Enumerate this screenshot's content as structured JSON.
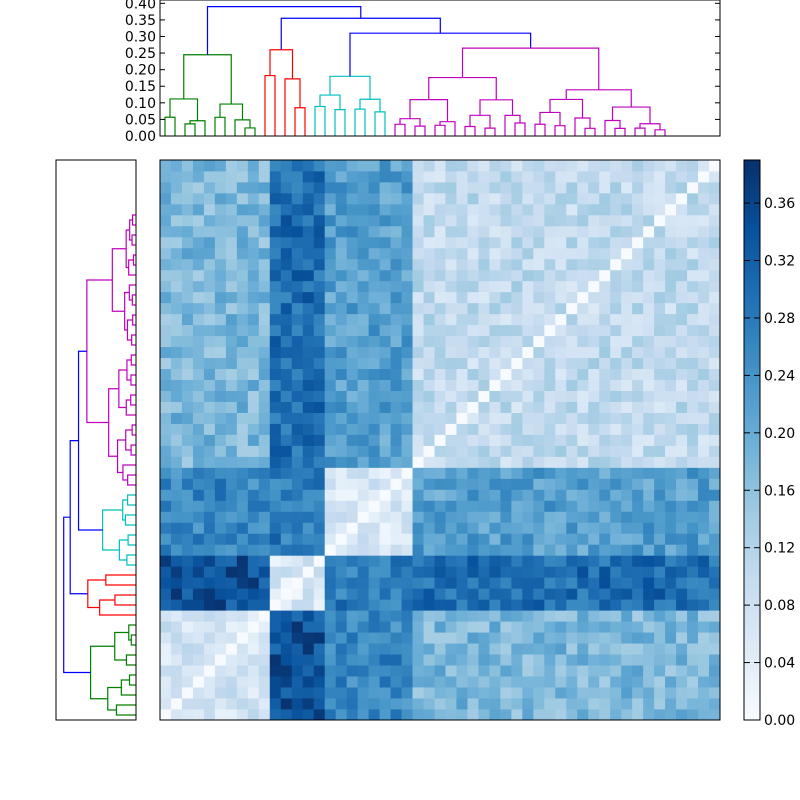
{
  "chart_data": [
    {
      "type": "dendrogram",
      "orientation": "top",
      "leaves": 51,
      "ylim": [
        0,
        0.41
      ],
      "yticks": [
        "0.00",
        "0.05",
        "0.10",
        "0.15",
        "0.20",
        "0.25",
        "0.30",
        "0.35",
        "0.40"
      ],
      "ytick_values": [
        0,
        0.05,
        0.1,
        0.15,
        0.2,
        0.25,
        0.3,
        0.35,
        0.4
      ],
      "cluster_colors": {
        "green": "#008000",
        "red": "#ff0000",
        "cyan": "#00bfbf",
        "magenta": "#bf00bf",
        "root": "#0000ff"
      },
      "link_heights": {
        "root": 0.39,
        "second": 0.355,
        "third": 0.31,
        "magenta_top": 0.265,
        "cyan_top": 0.18,
        "red_top": 0.26,
        "green_top": 0.245
      }
    },
    {
      "type": "dendrogram",
      "orientation": "left",
      "leaves": 51,
      "note_colors": [
        "#008000",
        "#ff0000",
        "#00bfbf",
        "#bf00bf",
        "#0000ff"
      ]
    },
    {
      "type": "heatmap",
      "rows": 51,
      "cols": 51,
      "colormap": "Blues",
      "colorbar": {
        "range": [
          0,
          0.39
        ],
        "ticks": [
          "0.00",
          "0.04",
          "0.08",
          "0.12",
          "0.16",
          "0.20",
          "0.24",
          "0.28",
          "0.32",
          "0.36"
        ],
        "tick_values": [
          0,
          0.04,
          0.08,
          0.12,
          0.16,
          0.2,
          0.24,
          0.28,
          0.32,
          0.36
        ]
      },
      "cluster_order": [
        "green",
        "red",
        "cyan",
        "magenta"
      ],
      "cluster_sizes": [
        10,
        5,
        8,
        28
      ],
      "block_means": [
        [
          0.07,
          0.34,
          0.26,
          0.18
        ],
        [
          0.34,
          0.06,
          0.28,
          0.3
        ],
        [
          0.26,
          0.28,
          0.06,
          0.22
        ],
        [
          0.18,
          0.3,
          0.22,
          0.1
        ]
      ]
    }
  ]
}
